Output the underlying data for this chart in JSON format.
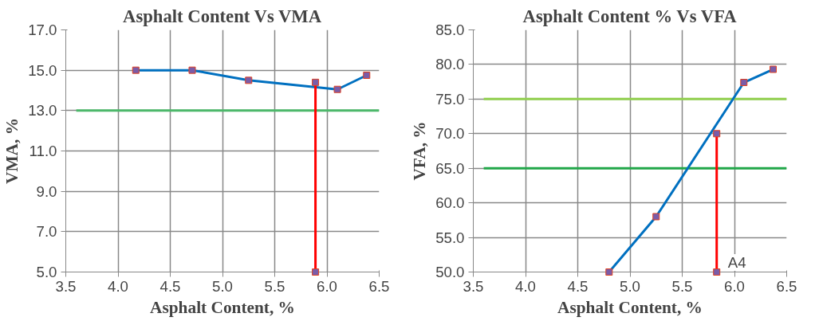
{
  "chart_data": [
    {
      "type": "line",
      "title": "Asphalt Content Vs VMA",
      "xlabel": "Asphalt Content, %",
      "ylabel": "VMA, %",
      "xlim": [
        3.5,
        6.5
      ],
      "ylim": [
        5.0,
        17.0
      ],
      "xticks": [
        3.5,
        {
          "value": 4,
          "label": "4.0"
        },
        4.5,
        {
          "value": 5,
          "label": "5.0"
        },
        5.5,
        {
          "value": 6,
          "label": "6.0"
        },
        6.5
      ],
      "yticks": [
        {
          "value": 5,
          "label": "5.0"
        },
        {
          "value": 7,
          "label": "7.0"
        },
        {
          "value": 9,
          "label": "9.0"
        },
        {
          "value": 11,
          "label": "11.0"
        },
        {
          "value": 13,
          "label": "13.0"
        },
        {
          "value": 15,
          "label": "15.0"
        },
        {
          "value": 17,
          "label": "17.0"
        }
      ],
      "grid": true,
      "series": [
        {
          "color": "#4cb86a",
          "marker": "none",
          "x": [
            3.6,
            6.5
          ],
          "values": [
            13.0,
            13.0
          ]
        },
        {
          "color": "#0070c0",
          "marker": "square",
          "x": [
            4.17,
            4.71,
            5.25,
            6.1,
            6.38
          ],
          "values": [
            15.0,
            15.0,
            14.5,
            14.05,
            14.75
          ]
        },
        {
          "color": "#ff0000",
          "marker": "square",
          "x": [
            5.89,
            5.89
          ],
          "values": [
            14.4,
            5.0
          ]
        }
      ]
    },
    {
      "type": "line",
      "title": "Asphalt Content % Vs VFA",
      "xlabel": "Asphalt Content, %",
      "ylabel": "VFA, %",
      "xlim": [
        3.5,
        6.5
      ],
      "ylim": [
        50.0,
        85.0
      ],
      "xticks": [
        3.5,
        {
          "value": 4,
          "label": "4.0"
        },
        4.5,
        {
          "value": 5,
          "label": "5.0"
        },
        5.5,
        {
          "value": 6,
          "label": "6.0"
        },
        6.5
      ],
      "yticks": [
        {
          "value": 50,
          "label": "50.0"
        },
        {
          "value": 55,
          "label": "55.0"
        },
        {
          "value": 60,
          "label": "60.0"
        },
        {
          "value": 65,
          "label": "65.0"
        },
        {
          "value": 70,
          "label": "70.0"
        },
        {
          "value": 75,
          "label": "75.0"
        },
        {
          "value": 80,
          "label": "80.0"
        },
        {
          "value": 85,
          "label": "85.0"
        }
      ],
      "grid": true,
      "annotations": [
        {
          "text": "A4",
          "x": 5.83,
          "y": 50.0
        }
      ],
      "series": [
        {
          "color": "#92d050",
          "marker": "none",
          "x": [
            3.6,
            6.5
          ],
          "values": [
            75.0,
            75.0
          ]
        },
        {
          "color": "#22a84a",
          "marker": "none",
          "x": [
            3.6,
            6.5
          ],
          "values": [
            65.0,
            65.0
          ]
        },
        {
          "color": "#0070c0",
          "marker": "square",
          "x": [
            4.8,
            5.25,
            6.09,
            6.37
          ],
          "values": [
            50.0,
            58.0,
            77.4,
            79.3
          ]
        },
        {
          "color": "#ff0000",
          "marker": "square",
          "x": [
            5.83,
            5.83
          ],
          "values": [
            70.0,
            50.0
          ]
        }
      ]
    }
  ]
}
